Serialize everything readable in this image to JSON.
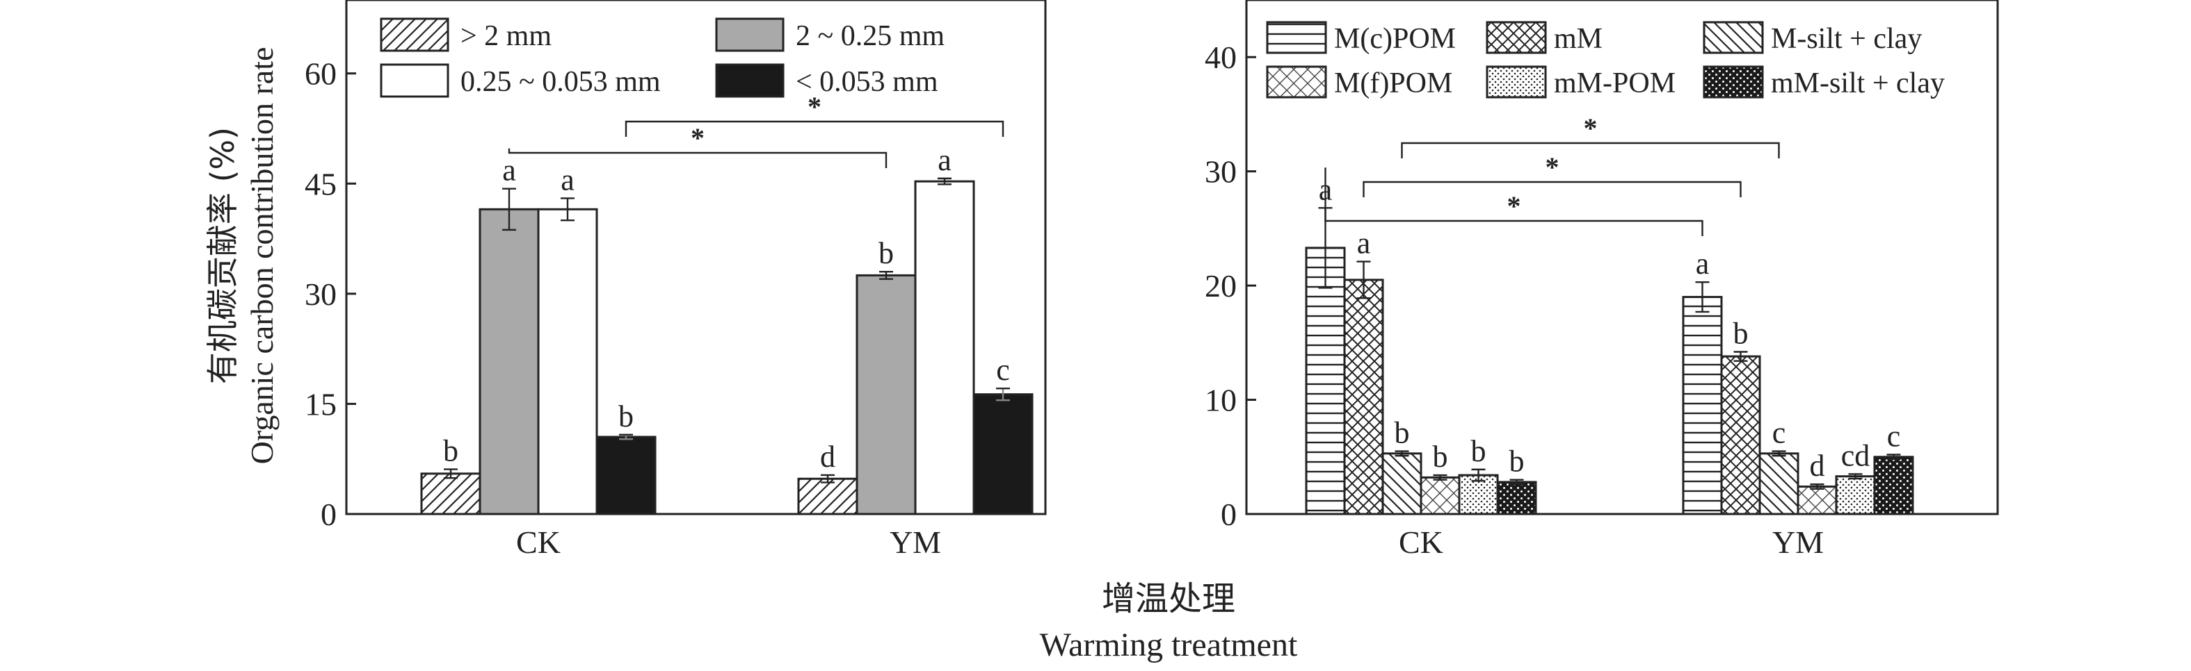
{
  "figure": {
    "xlabel_cn": "增温处理",
    "xlabel_en": "Warming treatment"
  },
  "colors": {
    "axis": "#222222",
    "gray_fill": "#a9a9a9",
    "black_fill": "#1a1a1a",
    "white_fill": "#ffffff"
  },
  "chart_data": [
    {
      "type": "bar",
      "title": "",
      "ylabel_cn": "有机碳贡献率 (%)",
      "ylabel_en": "Organic carbon contribution rate",
      "xlabel": "",
      "categories": [
        "CK",
        "YM"
      ],
      "ylim": [
        0,
        70
      ],
      "yticks": [
        0,
        15,
        30,
        45,
        60
      ],
      "legend_position": "top, inside plot",
      "grid": false,
      "series": [
        {
          "name": "> 2 mm",
          "pattern": "diag-right",
          "values": [
            5.5,
            4.8
          ],
          "errors": [
            0.6,
            0.5
          ],
          "letters": [
            "b",
            "d"
          ]
        },
        {
          "name": "2 ~ 0.25 mm",
          "pattern": "gray",
          "values": [
            41.5,
            32.5
          ],
          "errors": [
            2.8,
            0.5
          ],
          "letters": [
            "a",
            "b"
          ]
        },
        {
          "name": "0.25 ~ 0.053 mm",
          "pattern": "white",
          "values": [
            41.5,
            45.3
          ],
          "errors": [
            1.5,
            0.4
          ],
          "letters": [
            "a",
            "a"
          ]
        },
        {
          "name": "< 0.053 mm",
          "pattern": "black",
          "values": [
            10.5,
            16.3
          ],
          "errors": [
            0.3,
            0.8
          ],
          "letters": [
            "b",
            "c"
          ]
        }
      ],
      "significance": [
        {
          "from_category": 0,
          "from_series": 1,
          "to_category": 1,
          "to_series": 1,
          "label": "*"
        },
        {
          "from_category": 0,
          "from_series": 3,
          "to_category": 1,
          "to_series": 3,
          "label": "*"
        }
      ]
    },
    {
      "type": "bar",
      "title": "",
      "ylabel": "",
      "xlabel": "",
      "categories": [
        "CK",
        "YM"
      ],
      "ylim": [
        0,
        45
      ],
      "yticks": [
        0,
        10,
        20,
        30,
        40
      ],
      "legend_position": "top, inside plot",
      "grid": false,
      "series": [
        {
          "name": "M(c)POM",
          "pattern": "horiz",
          "values": [
            23.3,
            19.0
          ],
          "errors": [
            3.5,
            1.3
          ],
          "letters": [
            "a",
            "a"
          ]
        },
        {
          "name": "mM",
          "pattern": "crosshatch",
          "values": [
            20.5,
            13.8
          ],
          "errors": [
            1.6,
            0.4
          ],
          "letters": [
            "a",
            "b"
          ]
        },
        {
          "name": "M-silt + clay",
          "pattern": "diag-left",
          "values": [
            5.3,
            5.3
          ],
          "errors": [
            0.2,
            0.2
          ],
          "letters": [
            "b",
            "c"
          ]
        },
        {
          "name": "M(f)POM",
          "pattern": "diag-cross",
          "values": [
            3.2,
            2.4
          ],
          "errors": [
            0.2,
            0.2
          ],
          "letters": [
            "b",
            "d"
          ]
        },
        {
          "name": "mM-POM",
          "pattern": "dots",
          "values": [
            3.4,
            3.3
          ],
          "errors": [
            0.5,
            0.2
          ],
          "letters": [
            "b",
            "cd"
          ]
        },
        {
          "name": "mM-silt + clay",
          "pattern": "checker",
          "values": [
            2.8,
            5.0
          ],
          "errors": [
            0.2,
            0.2
          ],
          "letters": [
            "b",
            "c"
          ]
        }
      ],
      "significance": [
        {
          "from_category": 0,
          "from_series": 0,
          "to_category": 1,
          "to_series": 0,
          "label": "*"
        },
        {
          "from_category": 0,
          "from_series": 1,
          "to_category": 1,
          "to_series": 1,
          "label": "*"
        },
        {
          "from_category": 0,
          "from_series": 2,
          "to_category": 1,
          "to_series": 2,
          "label": "*"
        }
      ]
    }
  ]
}
